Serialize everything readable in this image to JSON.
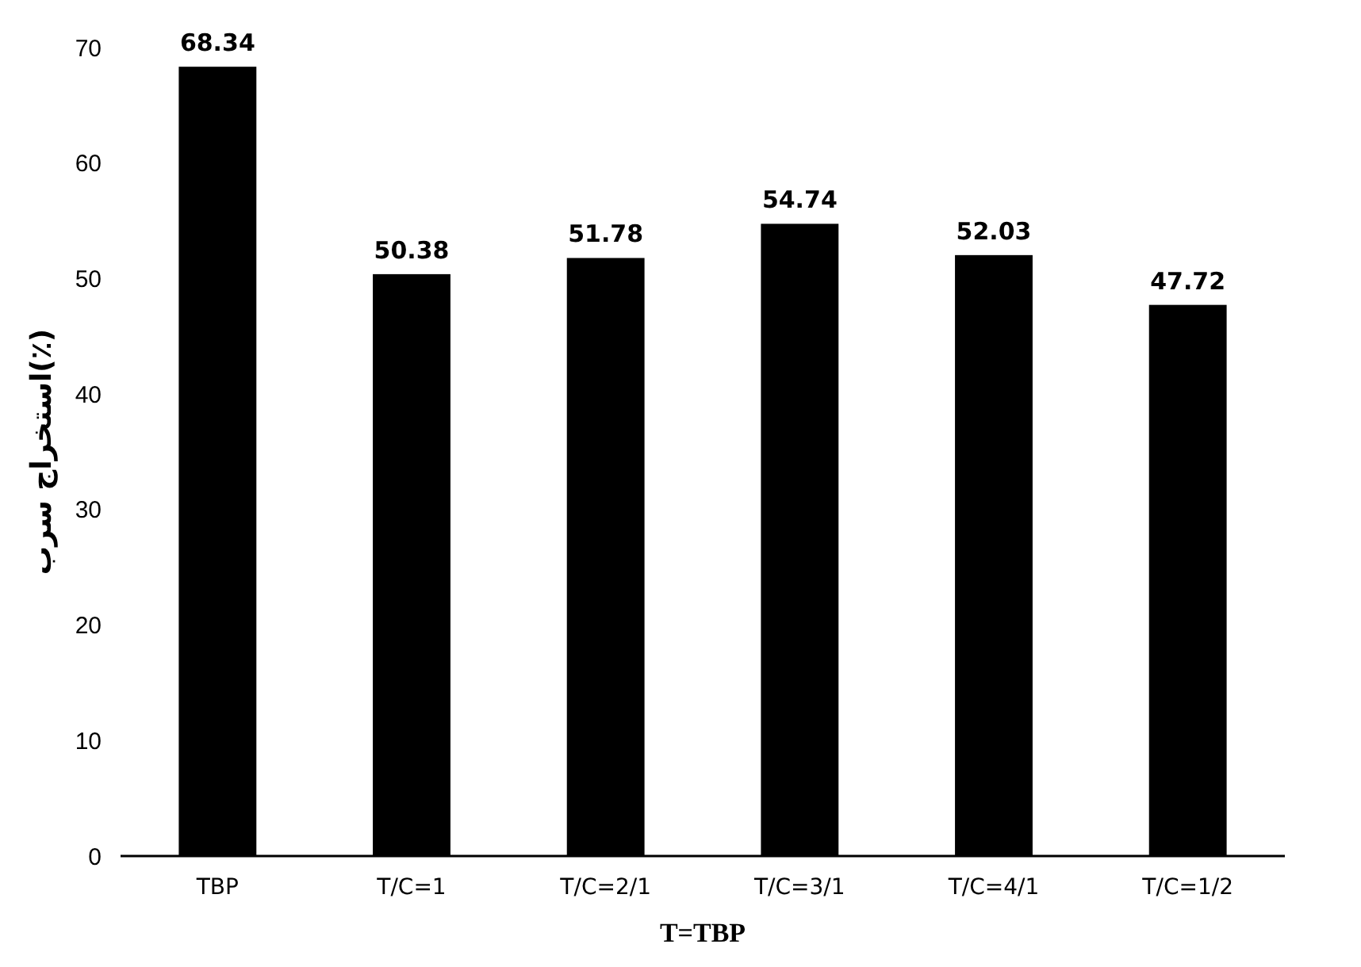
{
  "chart_data": {
    "type": "bar",
    "xlabel": "T=TBP",
    "ylabel": "(٪)استخراج سرب",
    "categories": [
      "TBP",
      "T/C=1",
      "T/C=2/1",
      "T/C=3/1",
      "T/C=4/1",
      "T/C=1/2"
    ],
    "values": [
      68.34,
      50.38,
      51.78,
      54.74,
      52.03,
      47.72
    ],
    "color": "#000000",
    "ylim": [
      0,
      70
    ],
    "yticks": [
      0,
      10,
      20,
      30,
      40,
      50,
      60,
      70
    ],
    "data_labels": true
  }
}
